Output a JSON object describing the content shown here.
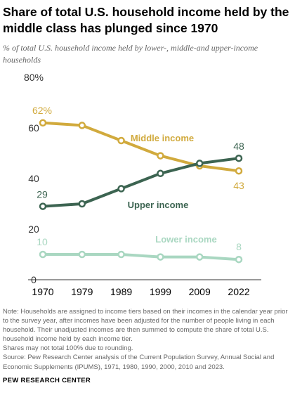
{
  "header": {
    "title": "Share of total U.S. household income held by the middle class has plunged since 1970",
    "subtitle": "% of total U.S. household income held by lower-, middle-and upper-income households"
  },
  "chart_data": {
    "type": "line",
    "x": [
      "1970",
      "1979",
      "1989",
      "1999",
      "2009",
      "2022"
    ],
    "ylim": [
      0,
      80
    ],
    "yticks": [
      0,
      20,
      40,
      60,
      80
    ],
    "ytick_labels": [
      "0",
      "20",
      "40",
      "60",
      "80%"
    ],
    "grid": false,
    "series": [
      {
        "name": "Middle income",
        "values": [
          62,
          61,
          55,
          49,
          45,
          43
        ],
        "color": "#d1aa3d",
        "start_label": "62%",
        "end_label": "43"
      },
      {
        "name": "Upper income",
        "values": [
          29,
          30,
          36,
          42,
          46,
          48
        ],
        "color": "#3c6451",
        "start_label": "29",
        "end_label": "48"
      },
      {
        "name": "Lower income",
        "values": [
          10,
          10,
          10,
          9,
          9,
          8
        ],
        "color": "#a9d7c1",
        "start_label": "10",
        "end_label": "8"
      }
    ]
  },
  "notes": {
    "note": "Note: Households are assigned to income tiers based on their incomes in the calendar year prior to the survey year, after incomes have been adjusted for the number of people living in each household. Their unadjusted incomes are then summed to compute the share of total U.S. household income held by each income tier.",
    "rounding": "Shares may not total 100% due to rounding.",
    "source": "Source: Pew Research Center analysis of the Current Population Survey, Annual Social and Economic Supplements (IPUMS), 1971, 1980, 1990, 2000, 2010 and 2023."
  },
  "footer": {
    "org": "PEW RESEARCH CENTER"
  }
}
